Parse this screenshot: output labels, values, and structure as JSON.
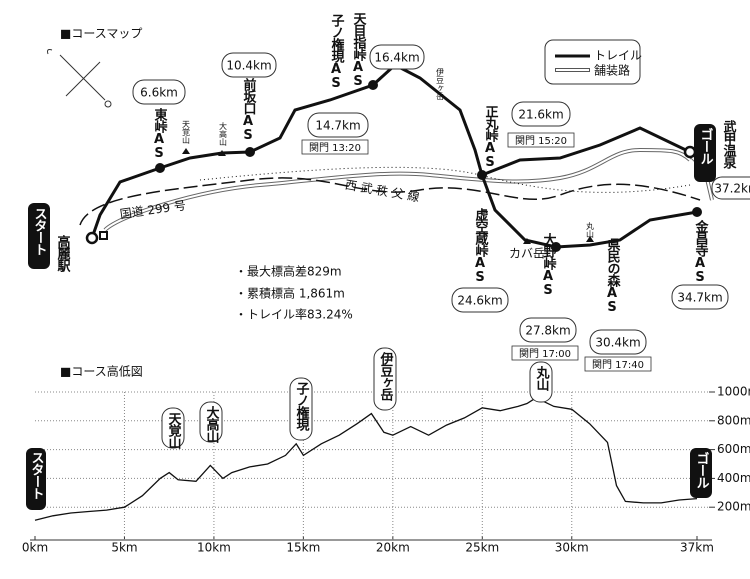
{
  "map": {
    "title": "■コースマップ",
    "legend": {
      "trail": "トレイル",
      "road": "舗装路"
    },
    "start": {
      "label": "スタート",
      "station": "高麗駅"
    },
    "goal": {
      "label": "ゴール",
      "station": "武甲温泉",
      "distance": "37.2km"
    },
    "aid_stations": [
      {
        "name": "東峠AS",
        "distance": "6.6km"
      },
      {
        "name": "前坂口AS",
        "distance": "10.4km"
      },
      {
        "name": "子ノ権現AS",
        "distance": "14.7km",
        "cutoff": "関門 13:20"
      },
      {
        "name": "天目指峠AS",
        "distance": "16.4km"
      },
      {
        "name": "正丸峠AS",
        "distance": "21.6km",
        "cutoff": "関門 15:20"
      },
      {
        "name": "虚空蔵峠AS",
        "distance": "24.6km"
      },
      {
        "name": "大野峠AS",
        "distance": "27.8km",
        "cutoff": "関門 17:00"
      },
      {
        "name": "県民の森AS",
        "distance": "30.4km",
        "cutoff": "関門 17:40"
      },
      {
        "name": "金昌寺AS",
        "distance": "34.7km"
      }
    ],
    "peaks": [
      "天覚山",
      "大高山",
      "伊豆ヶ岳",
      "カバ岳",
      "丸山"
    ],
    "roads": [
      "国道 299 号",
      "西 武 秩 父 線"
    ],
    "stats": [
      "・最大標高差829m",
      "・累積標高 1,861m",
      "・トレイル率83.24%"
    ]
  },
  "chart_data": {
    "type": "line",
    "title": "■コース高低図",
    "annotations": [
      "スタート",
      "天覚山",
      "大高山",
      "子ノ権現",
      "伊豆ヶ岳",
      "丸山",
      "ゴール"
    ],
    "x": [
      0,
      1,
      2,
      3,
      4,
      5,
      6,
      7,
      7.5,
      8,
      9,
      9.8,
      10.5,
      11,
      12,
      13,
      14,
      14.6,
      15,
      16,
      17,
      18,
      18.8,
      19.5,
      20,
      21,
      22,
      23,
      24,
      25,
      26,
      27,
      27.5,
      28,
      29,
      30,
      31,
      32,
      32.5,
      33,
      34,
      35,
      36,
      37
    ],
    "y": [
      110,
      140,
      160,
      170,
      180,
      200,
      280,
      400,
      440,
      390,
      380,
      490,
      400,
      440,
      480,
      500,
      560,
      640,
      560,
      640,
      700,
      780,
      850,
      720,
      700,
      760,
      700,
      770,
      820,
      890,
      870,
      900,
      920,
      960,
      900,
      880,
      780,
      650,
      350,
      240,
      230,
      230,
      250,
      260
    ],
    "color": "#111",
    "xlim": [
      0,
      37
    ],
    "ylim": [
      0,
      1000
    ],
    "xticks": [
      {
        "value": 0,
        "label": "0km"
      },
      {
        "value": 5,
        "label": "5km"
      },
      {
        "value": 10,
        "label": "10km"
      },
      {
        "value": 15,
        "label": "15km"
      },
      {
        "value": 20,
        "label": "20km"
      },
      {
        "value": 25,
        "label": "25km"
      },
      {
        "value": 30,
        "label": "30km"
      },
      {
        "value": 37,
        "label": "37km"
      }
    ],
    "yticks": [
      {
        "value": 200,
        "label": "200m"
      },
      {
        "value": 400,
        "label": "400m"
      },
      {
        "value": 600,
        "label": "600m"
      },
      {
        "value": 800,
        "label": "800m"
      },
      {
        "value": 1000,
        "label": "1000m"
      }
    ],
    "grid": true
  }
}
